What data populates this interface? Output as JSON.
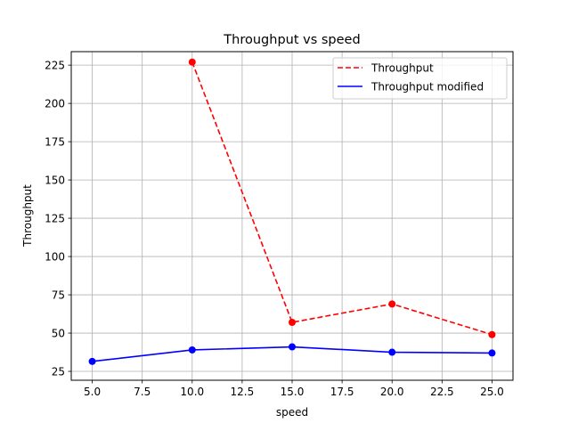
{
  "chart_data": {
    "type": "line",
    "title": "Throughput vs speed",
    "xlabel": "speed",
    "ylabel": "Throughput",
    "xlim": [
      3.95,
      26.05
    ],
    "ylim": [
      19.2,
      233.8
    ],
    "xticks": [
      5.0,
      7.5,
      10.0,
      12.5,
      15.0,
      17.5,
      20.0,
      22.5,
      25.0
    ],
    "xtick_labels": [
      "5.0",
      "7.5",
      "10.0",
      "12.5",
      "15.0",
      "17.5",
      "20.0",
      "22.5",
      "25.0"
    ],
    "yticks": [
      25,
      50,
      75,
      100,
      125,
      150,
      175,
      200,
      225
    ],
    "ytick_labels": [
      "25",
      "50",
      "75",
      "100",
      "125",
      "150",
      "175",
      "200",
      "225"
    ],
    "grid": true,
    "legend_position": "upper-right",
    "series": [
      {
        "name": "Throughput",
        "color": "#ff0000",
        "linestyle": "dashed",
        "marker": "circle",
        "x": [
          10,
          15,
          20,
          25
        ],
        "y": [
          227,
          57,
          69,
          49
        ]
      },
      {
        "name": "Throughput modified",
        "color": "#0000ff",
        "linestyle": "solid",
        "marker": "circle",
        "x": [
          5,
          10,
          15,
          20,
          25
        ],
        "y": [
          31.5,
          39,
          41,
          37.5,
          37
        ]
      }
    ]
  }
}
